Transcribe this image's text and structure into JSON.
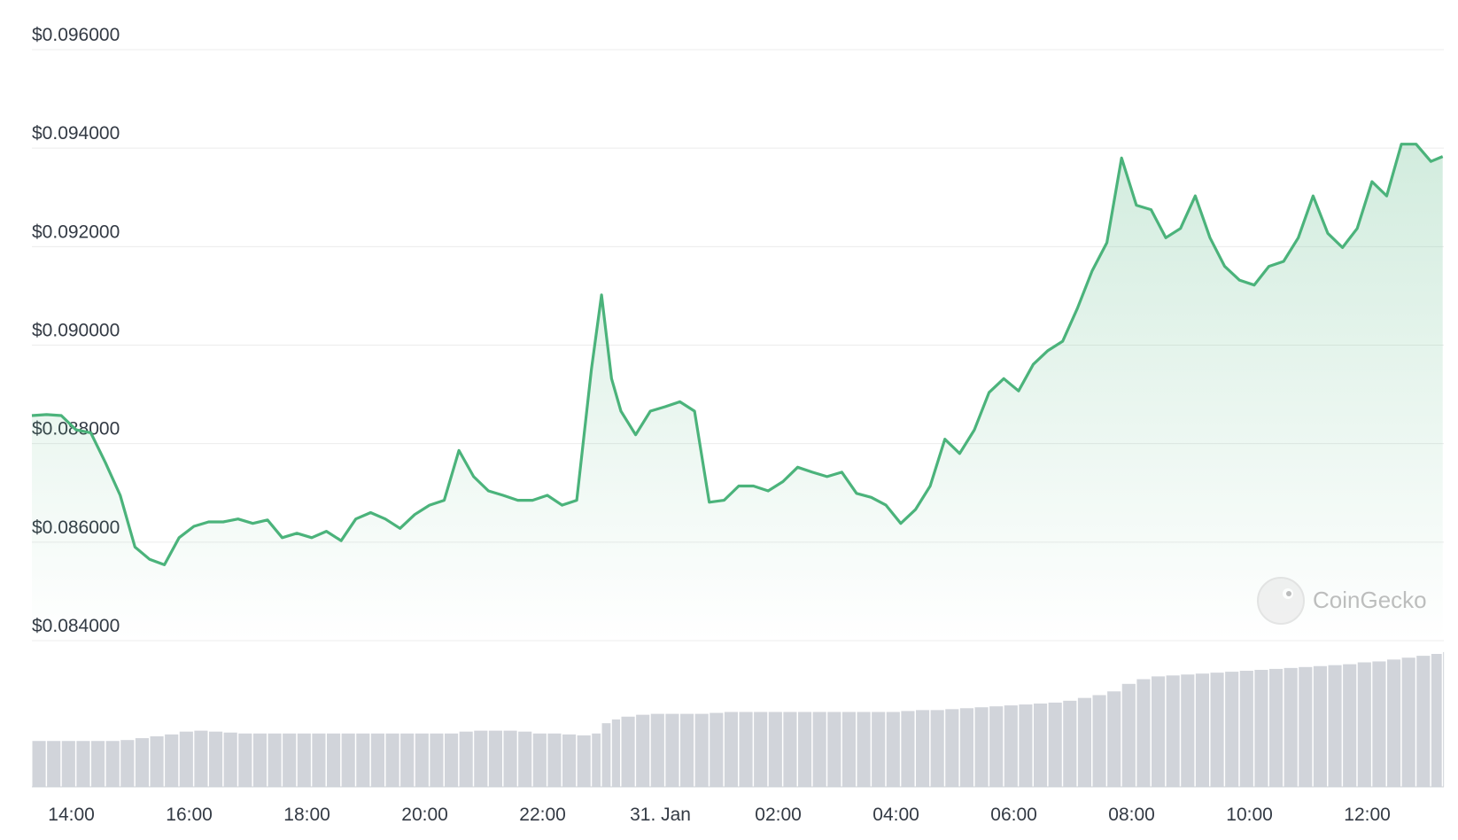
{
  "chart_data": {
    "type": "line",
    "watermark": "CoinGecko",
    "x": [
      13.33,
      13.58,
      13.83,
      14.08,
      14.33,
      14.58,
      14.83,
      15.08,
      15.33,
      15.58,
      15.83,
      16.08,
      16.33,
      16.58,
      16.83,
      17.08,
      17.33,
      17.58,
      17.83,
      18.08,
      18.33,
      18.58,
      18.83,
      19.08,
      19.33,
      19.58,
      19.83,
      20.08,
      20.33,
      20.58,
      20.83,
      21.08,
      21.33,
      21.58,
      21.83,
      22.08,
      22.33,
      22.58,
      22.83,
      23.0,
      23.17,
      23.33,
      23.58,
      23.83,
      24.08,
      24.33,
      24.58,
      24.83,
      25.08,
      25.33,
      25.58,
      25.83,
      26.08,
      26.33,
      26.58,
      26.83,
      27.08,
      27.33,
      27.58,
      27.83,
      28.08,
      28.33,
      28.58,
      28.83,
      29.08,
      29.33,
      29.58,
      29.83,
      30.08,
      30.33,
      30.58,
      30.83,
      31.08,
      31.33,
      31.58,
      31.83,
      32.08,
      32.33,
      32.58,
      32.83,
      33.08,
      33.33,
      33.58,
      33.83,
      34.08,
      34.33,
      34.58,
      34.83,
      35.08,
      35.33,
      35.58,
      35.83,
      36.08,
      36.33,
      36.58,
      36.83,
      37.08,
      37.28
    ],
    "series": [
      {
        "color": "#4bb37b",
        "values": [
          0.08857,
          0.08859,
          0.08857,
          0.08828,
          0.08822,
          0.08761,
          0.08695,
          0.0859,
          0.08565,
          0.08554,
          0.08609,
          0.08632,
          0.08641,
          0.08641,
          0.08647,
          0.08638,
          0.08645,
          0.08609,
          0.08618,
          0.08609,
          0.08622,
          0.08603,
          0.08647,
          0.0866,
          0.08647,
          0.08628,
          0.08656,
          0.08675,
          0.08685,
          0.08786,
          0.08733,
          0.08704,
          0.08695,
          0.08685,
          0.08685,
          0.08695,
          0.08675,
          0.08685,
          0.08951,
          0.09102,
          0.08932,
          0.08866,
          0.08818,
          0.08866,
          0.08875,
          0.08885,
          0.08866,
          0.08681,
          0.08685,
          0.08714,
          0.08714,
          0.08704,
          0.08723,
          0.08752,
          0.08742,
          0.08733,
          0.08742,
          0.08699,
          0.08691,
          0.08675,
          0.08638,
          0.08666,
          0.08714,
          0.08809,
          0.0878,
          0.08828,
          0.08904,
          0.08932,
          0.08907,
          0.08961,
          0.08989,
          0.09008,
          0.09075,
          0.09151,
          0.09208,
          0.0938,
          0.09284,
          0.09275,
          0.09218,
          0.09237,
          0.09303,
          0.09218,
          0.0916,
          0.09132,
          0.09122,
          0.0916,
          0.0917,
          0.09218,
          0.09303,
          0.09227,
          0.09198,
          0.09237,
          0.09332,
          0.09303,
          0.09408,
          0.09408,
          0.09373,
          0.09383
        ]
      },
      {
        "type": "bar",
        "axis": "y2",
        "color": "#d1d4da",
        "values": [
          49,
          49,
          49,
          49,
          49,
          49,
          50,
          52,
          54,
          56,
          59,
          60,
          59,
          58,
          57,
          57,
          57,
          57,
          57,
          57,
          57,
          57,
          57,
          57,
          57,
          57,
          57,
          57,
          57,
          59,
          60,
          60,
          60,
          59,
          57,
          57,
          56,
          55,
          57,
          68,
          72,
          75,
          77,
          78,
          78,
          78,
          78,
          79,
          80,
          80,
          80,
          80,
          80,
          80,
          80,
          80,
          80,
          80,
          80,
          80,
          81,
          82,
          82,
          83,
          84,
          85,
          86,
          87,
          88,
          89,
          90,
          92,
          95,
          98,
          102,
          110,
          115,
          118,
          119,
          120,
          121,
          122,
          123,
          124,
          125,
          126,
          127,
          128,
          129,
          130,
          131,
          133,
          134,
          136,
          138,
          140,
          142,
          144
        ]
      }
    ],
    "xlim": [
      13.33,
      37.3
    ],
    "xticks": [
      {
        "value": 14,
        "label": "14:00"
      },
      {
        "value": 16,
        "label": "16:00"
      },
      {
        "value": 18,
        "label": "18:00"
      },
      {
        "value": 20,
        "label": "20:00"
      },
      {
        "value": 22,
        "label": "22:00"
      },
      {
        "value": 24,
        "label": "31. Jan"
      },
      {
        "value": 26,
        "label": "02:00"
      },
      {
        "value": 28,
        "label": "04:00"
      },
      {
        "value": 30,
        "label": "06:00"
      },
      {
        "value": 32,
        "label": "08:00"
      },
      {
        "value": 34,
        "label": "10:00"
      },
      {
        "value": 36,
        "label": "12:00"
      }
    ],
    "ylim": [
      0.084,
      0.096
    ],
    "yticks": [
      {
        "value": 0.084,
        "label": "$0.084000"
      },
      {
        "value": 0.086,
        "label": "$0.086000"
      },
      {
        "value": 0.088,
        "label": "$0.088000"
      },
      {
        "value": 0.09,
        "label": "$0.090000"
      },
      {
        "value": 0.092,
        "label": "$0.092000"
      },
      {
        "value": 0.094,
        "label": "$0.094000"
      },
      {
        "value": 0.096,
        "label": "$0.096000"
      }
    ],
    "y2lim": [
      0,
      160
    ],
    "grid": true
  }
}
